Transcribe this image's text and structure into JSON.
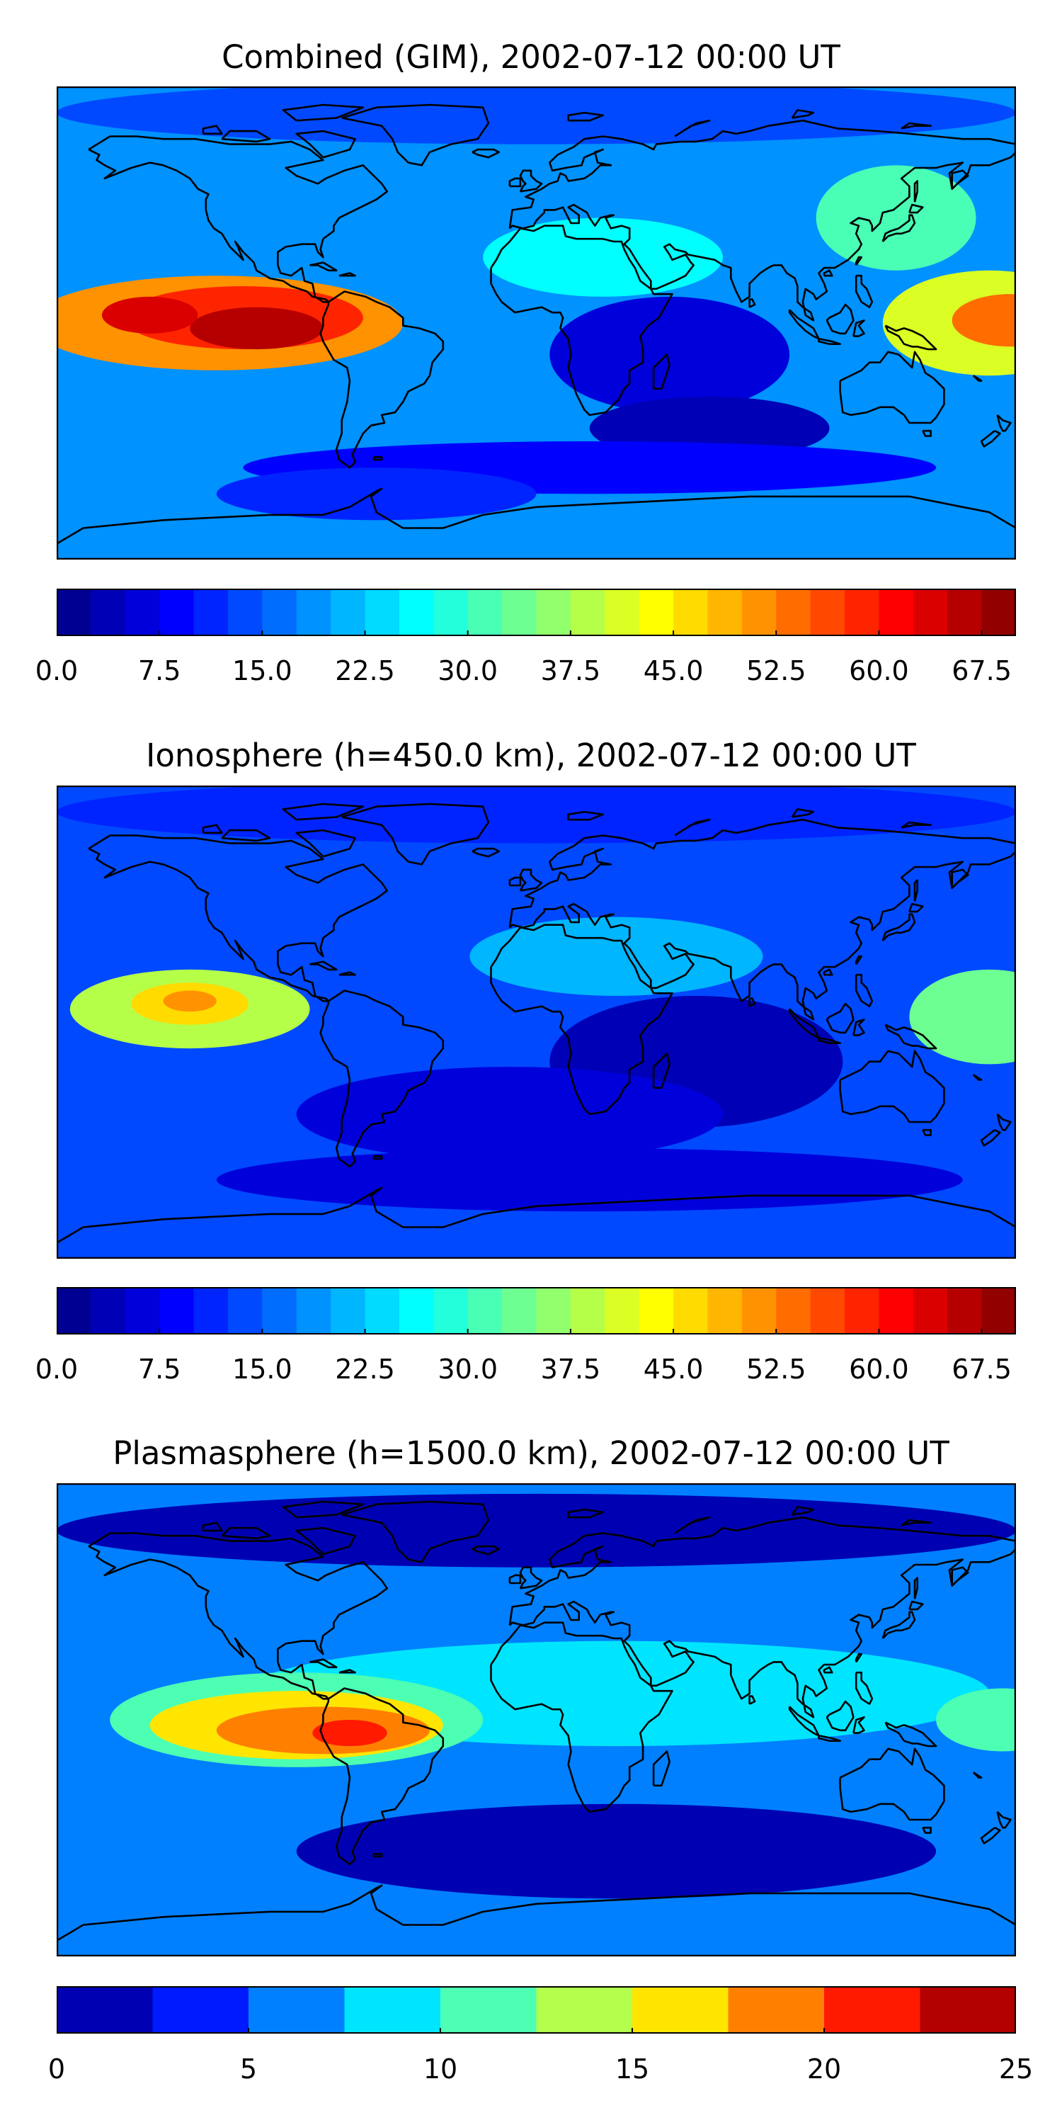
{
  "panels": [
    {
      "title": "Combined (GIM), 2002-07-12 00:00 UT",
      "colorbar": {
        "vmin": 0,
        "vmax": 70,
        "levels": 28,
        "colormap": "jet",
        "tick_values": [
          0,
          7.5,
          15,
          22.5,
          30,
          37.5,
          45,
          52.5,
          60,
          67.5
        ],
        "tick_labels": [
          "0.0",
          "7.5",
          "15.0",
          "22.5",
          "30.0",
          "37.5",
          "45.0",
          "52.5",
          "60.0",
          "67.5"
        ]
      },
      "background_level": 18,
      "features": [
        {
          "lon": -120,
          "lat": 0,
          "rlon": 70,
          "rlat": 18,
          "level": 50
        },
        {
          "lon": -110,
          "lat": 2,
          "rlon": 45,
          "rlat": 12,
          "level": 58
        },
        {
          "lon": -105,
          "lat": -2,
          "rlon": 25,
          "rlat": 8,
          "level": 66
        },
        {
          "lon": -145,
          "lat": 3,
          "rlon": 18,
          "rlat": 7,
          "level": 64
        },
        {
          "lon": 170,
          "lat": 0,
          "rlon": 40,
          "rlat": 20,
          "level": 42
        },
        {
          "lon": 178,
          "lat": 1,
          "rlon": 22,
          "rlat": 10,
          "level": 54
        },
        {
          "lon": 50,
          "lat": -12,
          "rlon": 45,
          "rlat": 22,
          "level": 7
        },
        {
          "lon": 65,
          "lat": -40,
          "rlon": 45,
          "rlat": 12,
          "level": 3
        },
        {
          "lon": 20,
          "lat": -55,
          "rlon": 130,
          "rlat": 10,
          "level": 9
        },
        {
          "lon": -60,
          "lat": -65,
          "rlon": 60,
          "rlat": 10,
          "level": 11
        },
        {
          "lon": 0,
          "lat": 80,
          "rlon": 180,
          "rlat": 12,
          "level": 14
        },
        {
          "lon": 25,
          "lat": 25,
          "rlon": 45,
          "rlat": 15,
          "level": 26
        },
        {
          "lon": 135,
          "lat": 40,
          "rlon": 30,
          "rlat": 20,
          "level": 30
        }
      ]
    },
    {
      "title": "Ionosphere  (h=450.0 km), 2002-07-12 00:00 UT",
      "colorbar": {
        "vmin": 0,
        "vmax": 70,
        "levels": 28,
        "colormap": "jet",
        "tick_values": [
          0,
          7.5,
          15,
          22.5,
          30,
          37.5,
          45,
          52.5,
          60,
          67.5
        ],
        "tick_labels": [
          "0.0",
          "7.5",
          "15.0",
          "22.5",
          "30.0",
          "37.5",
          "45.0",
          "52.5",
          "60.0",
          "67.5"
        ]
      },
      "background_level": 14,
      "features": [
        {
          "lon": -130,
          "lat": 5,
          "rlon": 45,
          "rlat": 15,
          "level": 38
        },
        {
          "lon": -130,
          "lat": 7,
          "rlon": 22,
          "rlat": 8,
          "level": 46
        },
        {
          "lon": -130,
          "lat": 8,
          "rlon": 10,
          "rlat": 4,
          "level": 52
        },
        {
          "lon": 170,
          "lat": 2,
          "rlon": 30,
          "rlat": 18,
          "level": 34
        },
        {
          "lon": 60,
          "lat": -15,
          "rlon": 55,
          "rlat": 25,
          "level": 3
        },
        {
          "lon": -10,
          "lat": -35,
          "rlon": 80,
          "rlat": 18,
          "level": 5
        },
        {
          "lon": 20,
          "lat": -60,
          "rlon": 140,
          "rlat": 12,
          "level": 6
        },
        {
          "lon": 30,
          "lat": 25,
          "rlon": 55,
          "rlat": 15,
          "level": 20
        },
        {
          "lon": 0,
          "lat": 80,
          "rlon": 180,
          "rlat": 12,
          "level": 11
        }
      ]
    },
    {
      "title": "Plasmasphere (h=1500.0 km), 2002-07-12 00:00 UT",
      "colorbar": {
        "vmin": 0,
        "vmax": 25,
        "levels": 10,
        "colormap": "jet",
        "tick_values": [
          0,
          5,
          10,
          15,
          20,
          25
        ],
        "tick_labels": [
          "0",
          "5",
          "10",
          "15",
          "20",
          "25"
        ]
      },
      "background_level": 6,
      "features": [
        {
          "lon": 30,
          "lat": 10,
          "rlon": 140,
          "rlat": 20,
          "level": 8.5
        },
        {
          "lon": -90,
          "lat": 0,
          "rlon": 70,
          "rlat": 18,
          "level": 12
        },
        {
          "lon": -90,
          "lat": -2,
          "rlon": 55,
          "rlat": 13,
          "level": 16
        },
        {
          "lon": -80,
          "lat": -4,
          "rlon": 40,
          "rlat": 9,
          "level": 18.5
        },
        {
          "lon": -70,
          "lat": -5,
          "rlon": 14,
          "rlat": 5,
          "level": 21
        },
        {
          "lon": 0,
          "lat": 72,
          "rlon": 180,
          "rlat": 14,
          "level": 2
        },
        {
          "lon": 30,
          "lat": -50,
          "rlon": 120,
          "rlat": 18,
          "level": 2
        },
        {
          "lon": 175,
          "lat": 0,
          "rlon": 25,
          "rlat": 12,
          "level": 12
        }
      ]
    }
  ]
}
